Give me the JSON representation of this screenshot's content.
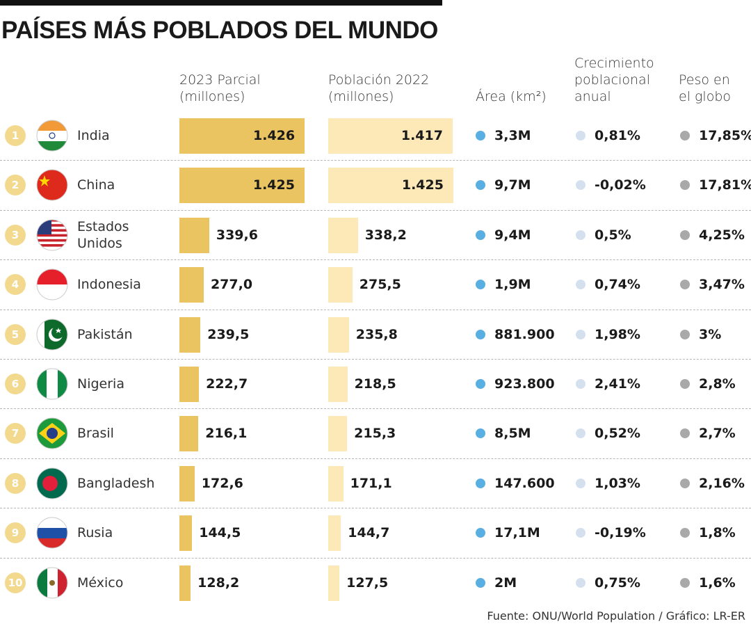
{
  "chart_data": {
    "type": "bar-table",
    "title": "PAÍSES MÁS POBLADOS DEL MUNDO",
    "ranks": [
      1,
      2,
      3,
      4,
      5,
      6,
      7,
      8,
      9,
      10
    ],
    "categories": [
      "India",
      "China",
      "Estados Unidos",
      "Indonesia",
      "Pakistán",
      "Nigeria",
      "Brasil",
      "Bangladesh",
      "Rusia",
      "México"
    ],
    "series": [
      {
        "name": "2023 Parcial\n(millones)",
        "color": "#ebc462",
        "values": [
          1426,
          1425,
          339.6,
          277.0,
          239.5,
          222.7,
          216.1,
          172.6,
          144.5,
          128.2
        ],
        "value_labels": [
          "1.426",
          "1.425",
          "339,6",
          "277,0",
          "239,5",
          "222,7",
          "216,1",
          "172,6",
          "144,5",
          "128,2"
        ]
      },
      {
        "name": "Población 2022\n(millones)",
        "color": "#fde8b8",
        "values": [
          1417,
          1425,
          338.2,
          275.5,
          235.8,
          218.5,
          215.3,
          171.1,
          144.7,
          127.5
        ],
        "value_labels": [
          "1.417",
          "1.425",
          "338,2",
          "275,5",
          "235,8",
          "218,5",
          "215,3",
          "171,1",
          "144,7",
          "127,5"
        ]
      }
    ],
    "columns": [
      {
        "name": "Área (km²)",
        "color": "#5aafe2",
        "values": [
          "3,3M",
          "9,7M",
          "9,4M",
          "1,9M",
          "881.900",
          "923.800",
          "8,5M",
          "147.600",
          "17,1M",
          "2M"
        ]
      },
      {
        "name": "Crecimiento\npoblacional\nanual",
        "color": "#d5e0ef",
        "values": [
          "0,81%",
          "-0,02%",
          "0,5%",
          "0,74%",
          "1,98%",
          "2,41%",
          "0,52%",
          "1,03%",
          "-0,19%",
          "0,75%"
        ]
      },
      {
        "name": "Peso en\nel globo",
        "color": "#a9a9a9",
        "values": [
          "17,85%",
          "17,81%",
          "4,25%",
          "3,47%",
          "3%",
          "2,8%",
          "2,7%",
          "2,16%",
          "1,8%",
          "1,6%"
        ]
      }
    ],
    "source": "Fuente: ONU/World Population / Gráfico: LR-ER"
  }
}
